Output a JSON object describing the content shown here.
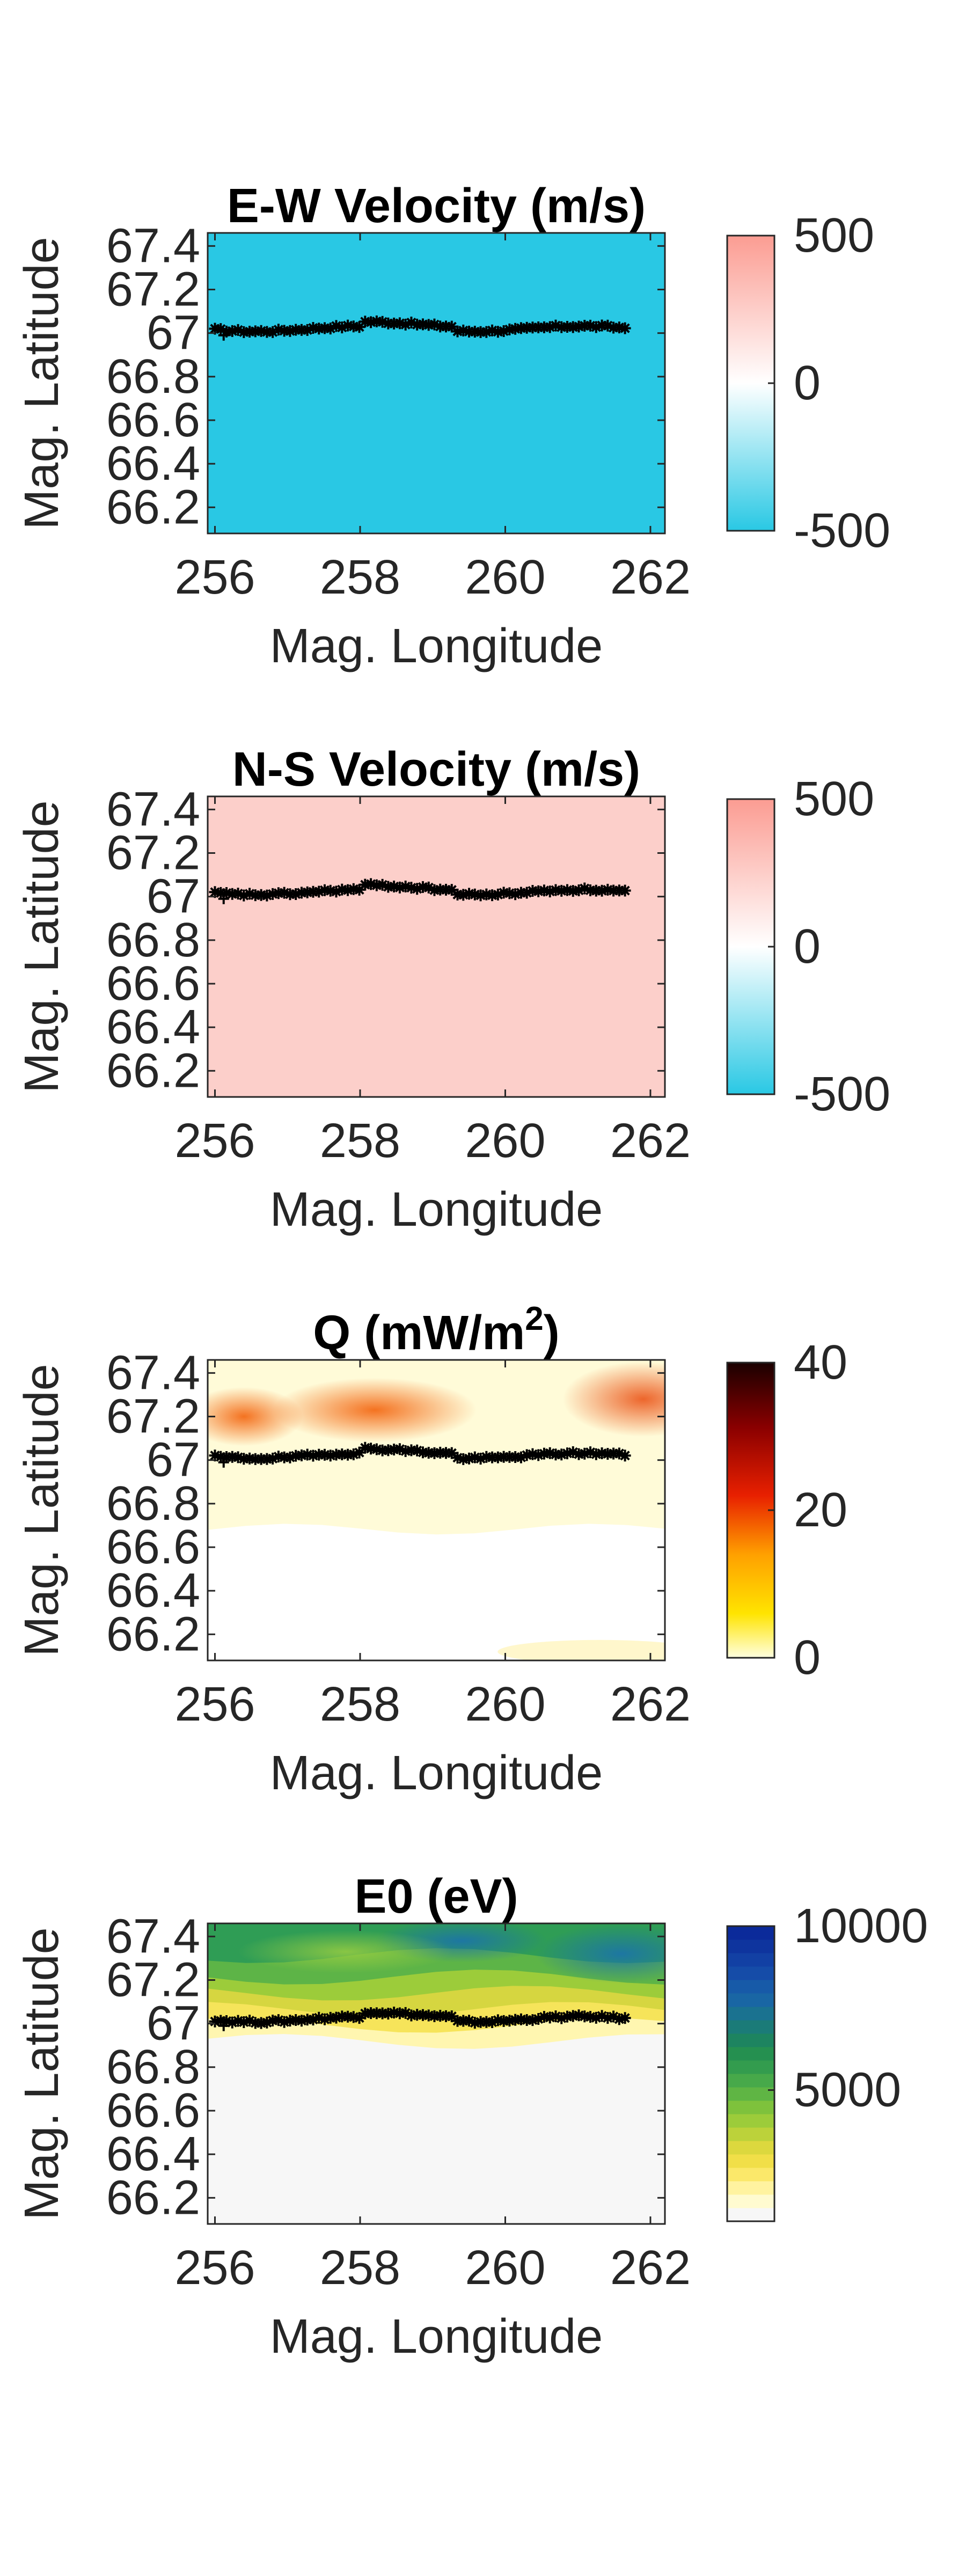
{
  "chart_data": [
    {
      "type": "heatmap",
      "title": "E-W Velocity (m/s)",
      "title_sup": "",
      "title_tail": "",
      "xlabel": "Mag. Longitude",
      "ylabel": "Mag. Latitude",
      "xlim": [
        255.9,
        262.2
      ],
      "ylim": [
        66.08,
        67.46
      ],
      "x_ticks": [
        "256",
        "258",
        "260",
        "262"
      ],
      "y_ticks": [
        "66.2",
        "66.4",
        "66.6",
        "66.8",
        "67",
        "67.2",
        "67.4"
      ],
      "colorbar": {
        "min": -500,
        "max": 500,
        "ticks": [
          "-500",
          "0",
          "500"
        ],
        "colormap": "blue-white-red"
      },
      "field": "uniform",
      "fill_color": "#29c8e4",
      "track": {
        "symbol": "*",
        "x_start": 256.0,
        "x_end": 261.65,
        "mean_lat": 67.02
      }
    },
    {
      "type": "heatmap",
      "title": "N-S Velocity (m/s)",
      "title_sup": "",
      "title_tail": "",
      "xlabel": "Mag. Longitude",
      "ylabel": "Mag. Latitude",
      "xlim": [
        255.9,
        262.2
      ],
      "ylim": [
        66.08,
        67.46
      ],
      "x_ticks": [
        "256",
        "258",
        "260",
        "262"
      ],
      "y_ticks": [
        "66.2",
        "66.4",
        "66.6",
        "66.8",
        "67",
        "67.2",
        "67.4"
      ],
      "colorbar": {
        "min": -500,
        "max": 500,
        "ticks": [
          "-500",
          "0",
          "500"
        ],
        "colormap": "blue-white-red"
      },
      "field": "uniform",
      "fill_color": "#fccfca",
      "track": {
        "symbol": "*",
        "x_start": 256.0,
        "x_end": 261.65,
        "mean_lat": 67.02
      }
    },
    {
      "type": "heatmap",
      "title": "Q (mW/m",
      "title_sup": "2",
      "title_tail": ")",
      "xlabel": "Mag. Longitude",
      "ylabel": "Mag. Latitude",
      "xlim": [
        255.9,
        262.2
      ],
      "ylim": [
        66.08,
        67.46
      ],
      "x_ticks": [
        "256",
        "258",
        "260",
        "262"
      ],
      "y_ticks": [
        "66.2",
        "66.4",
        "66.6",
        "66.8",
        "67",
        "67.2",
        "67.4"
      ],
      "colorbar": {
        "min": 0,
        "max": 40,
        "ticks": [
          "0",
          "20",
          "40"
        ],
        "colormap": "hot-reversed"
      },
      "field": "energy-flux",
      "fill_color": "",
      "track": {
        "symbol": "*",
        "x_start": 256.0,
        "x_end": 261.65,
        "mean_lat": 67.02
      }
    },
    {
      "type": "heatmap",
      "title": "E0 (eV)",
      "title_sup": "",
      "title_tail": "",
      "xlabel": "Mag. Longitude",
      "ylabel": "Mag. Latitude",
      "xlim": [
        255.9,
        262.2
      ],
      "ylim": [
        66.08,
        67.46
      ],
      "x_ticks": [
        "256",
        "258",
        "260",
        "262"
      ],
      "y_ticks": [
        "66.2",
        "66.4",
        "66.6",
        "66.8",
        "67",
        "67.2",
        "67.4"
      ],
      "colorbar": {
        "min": 1000,
        "max": 10000,
        "ticks": [
          "5000",
          "10000"
        ],
        "colormap": "yellow-green-blue"
      },
      "field": "characteristic-energy",
      "fill_color": "",
      "track": {
        "symbol": "*",
        "x_start": 256.0,
        "x_end": 261.65,
        "mean_lat": 67.02
      }
    }
  ]
}
